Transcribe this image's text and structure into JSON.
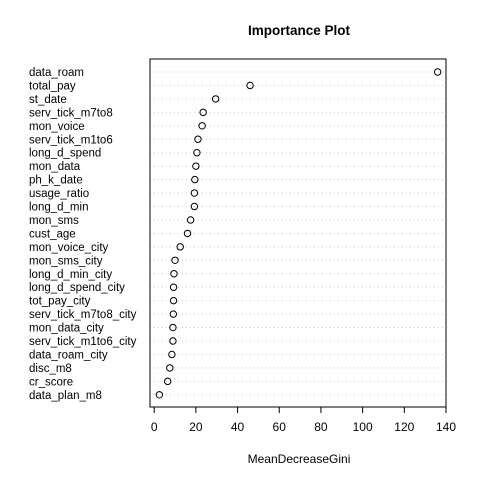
{
  "chart_data": {
    "type": "scatter",
    "title": "Importance Plot",
    "xlabel": "MeanDecreaseGini",
    "ylabel": "",
    "xlim": [
      -2,
      140
    ],
    "xticks": [
      0,
      20,
      40,
      60,
      80,
      100,
      120,
      140
    ],
    "grid": "dotted horizontal guide per variable",
    "legend": "none",
    "categories": [
      "data_roam",
      "total_pay",
      "st_date",
      "serv_tick_m7to8",
      "mon_voice",
      "serv_tick_m1to6",
      "long_d_spend",
      "mon_data",
      "ph_k_date",
      "usage_ratio",
      "long_d_min",
      "mon_sms",
      "cust_age",
      "mon_voice_city",
      "mon_sms_city",
      "long_d_min_city",
      "long_d_spend_city",
      "tot_pay_city",
      "serv_tick_m7to8_city",
      "mon_data_city",
      "serv_tick_m1to6_city",
      "data_roam_city",
      "disc_m8",
      "cr_score",
      "data_plan_m8"
    ],
    "values": [
      136,
      46,
      29.5,
      23.5,
      23,
      21,
      20.5,
      20,
      19.5,
      19.3,
      19.3,
      17.5,
      16,
      12.5,
      10,
      9.5,
      9.3,
      9.3,
      9.2,
      9,
      9,
      8.5,
      7.5,
      6.5,
      2.5
    ]
  }
}
